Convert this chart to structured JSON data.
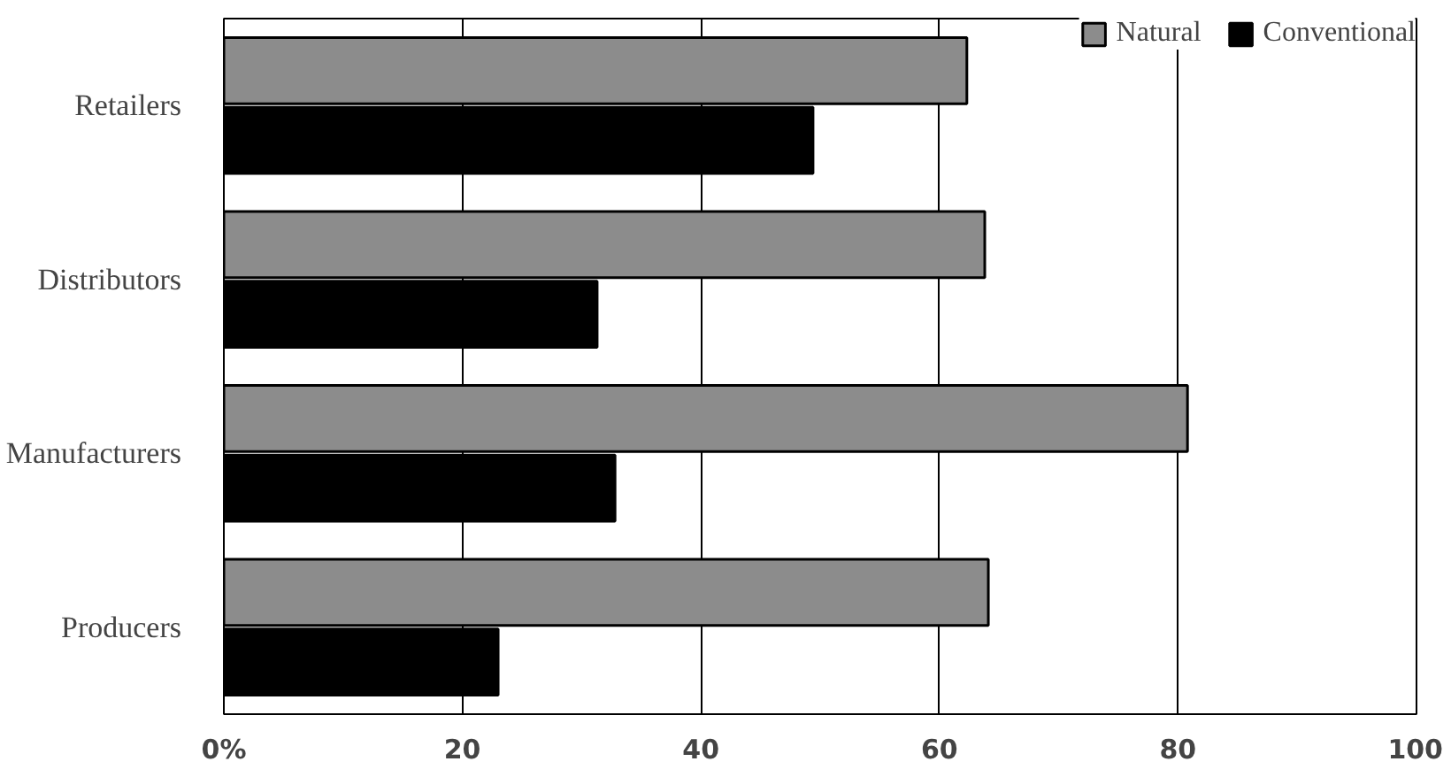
{
  "chart_data": {
    "type": "bar",
    "orientation": "horizontal",
    "categories": [
      "Retailers",
      "Distributors",
      "Manufacturers",
      "Producers"
    ],
    "series": [
      {
        "name": "Natural",
        "color": "#8c8c8c",
        "values": [
          62.3,
          63.8,
          80.8,
          64.1
        ]
      },
      {
        "name": "Conventional",
        "color": "#000000",
        "values": [
          49.4,
          31.3,
          32.8,
          23.0
        ]
      }
    ],
    "xlim": [
      0,
      100
    ],
    "xticks": [
      {
        "value": 0,
        "label": "0%"
      },
      20,
      40,
      60,
      80,
      100
    ],
    "grid": "x",
    "legend": "top right"
  }
}
